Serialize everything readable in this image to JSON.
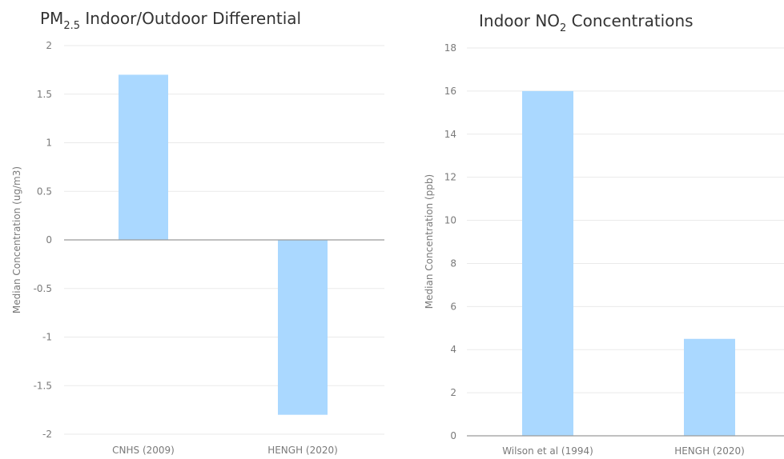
{
  "chart_data": [
    {
      "type": "bar",
      "title": "PM2.5 Indoor/Outdoor Differential",
      "title_parts": {
        "main": "PM",
        "sub": "2.5",
        "rest": " Indoor/Outdoor Differential"
      },
      "xlabel": "",
      "ylabel": "Median Concentration (ug/m3)",
      "categories": [
        "CNHS (2009)",
        "HENGH (2020)"
      ],
      "values": [
        1.7,
        -1.8
      ],
      "ylim": [
        -2,
        2
      ],
      "yticks": [
        2,
        1.5,
        1,
        0.5,
        0,
        -0.5,
        -1,
        -1.5,
        -2
      ],
      "ytick_labels": [
        "2",
        "1.5",
        "1",
        "0.5",
        "0",
        "-0.5",
        "-1",
        "-1.5",
        "-2"
      ],
      "grid": true,
      "bar_color": "#aad8ff"
    },
    {
      "type": "bar",
      "title": "Indoor NO2 Concentrations",
      "title_parts": {
        "main": "Indoor NO",
        "sub": "2",
        "rest": " Concentrations"
      },
      "xlabel": "",
      "ylabel": "Median Concentration (ppb)",
      "categories": [
        "Wilson et al (1994)",
        "HENGH (2020)"
      ],
      "values": [
        16,
        4.5
      ],
      "ylim": [
        0,
        18
      ],
      "yticks": [
        18,
        16,
        14,
        12,
        10,
        8,
        6,
        4,
        2,
        0
      ],
      "ytick_labels": [
        "18",
        "16",
        "14",
        "12",
        "10",
        "8",
        "6",
        "4",
        "2",
        "0"
      ],
      "grid": true,
      "bar_color": "#aad8ff"
    }
  ]
}
